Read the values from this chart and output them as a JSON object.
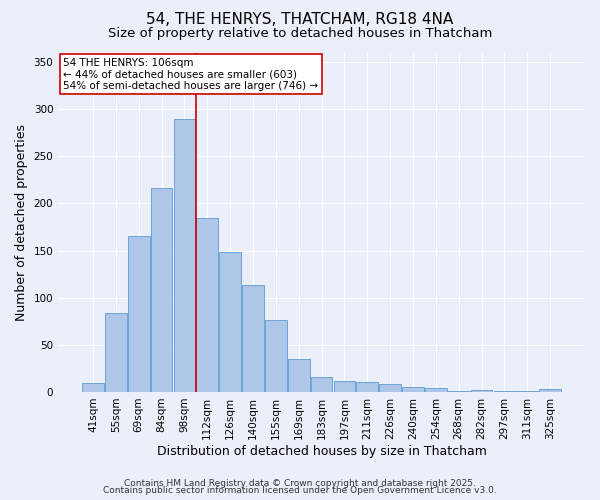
{
  "title_line1": "54, THE HENRYS, THATCHAM, RG18 4NA",
  "title_line2": "Size of property relative to detached houses in Thatcham",
  "xlabel": "Distribution of detached houses by size in Thatcham",
  "ylabel": "Number of detached properties",
  "categories": [
    "41sqm",
    "55sqm",
    "69sqm",
    "84sqm",
    "98sqm",
    "112sqm",
    "126sqm",
    "140sqm",
    "155sqm",
    "169sqm",
    "183sqm",
    "197sqm",
    "211sqm",
    "226sqm",
    "240sqm",
    "254sqm",
    "268sqm",
    "282sqm",
    "297sqm",
    "311sqm",
    "325sqm"
  ],
  "values": [
    10,
    84,
    165,
    216,
    290,
    184,
    148,
    113,
    76,
    35,
    16,
    12,
    11,
    8,
    5,
    4,
    1,
    2,
    1,
    1,
    3
  ],
  "bar_color": "#aec6e8",
  "bar_edgecolor": "#5b9bd5",
  "bar_linewidth": 0.6,
  "ylim": [
    0,
    360
  ],
  "yticks": [
    0,
    50,
    100,
    150,
    200,
    250,
    300,
    350
  ],
  "red_line_index": 5,
  "red_line_color": "#cc0000",
  "annotation_text": "54 THE HENRYS: 106sqm\n← 44% of detached houses are smaller (603)\n54% of semi-detached houses are larger (746) →",
  "annotation_box_edgecolor": "#cc0000",
  "annotation_box_facecolor": "#ffffff",
  "footer_line1": "Contains HM Land Registry data © Crown copyright and database right 2025.",
  "footer_line2": "Contains public sector information licensed under the Open Government Licence v3.0.",
  "background_color": "#eaeff9",
  "plot_background": "#eaeff9",
  "grid_color": "#ffffff",
  "title_fontsize": 11,
  "subtitle_fontsize": 9.5,
  "axis_label_fontsize": 9,
  "tick_fontsize": 7.5,
  "annotation_fontsize": 7.5,
  "footer_fontsize": 6.5
}
